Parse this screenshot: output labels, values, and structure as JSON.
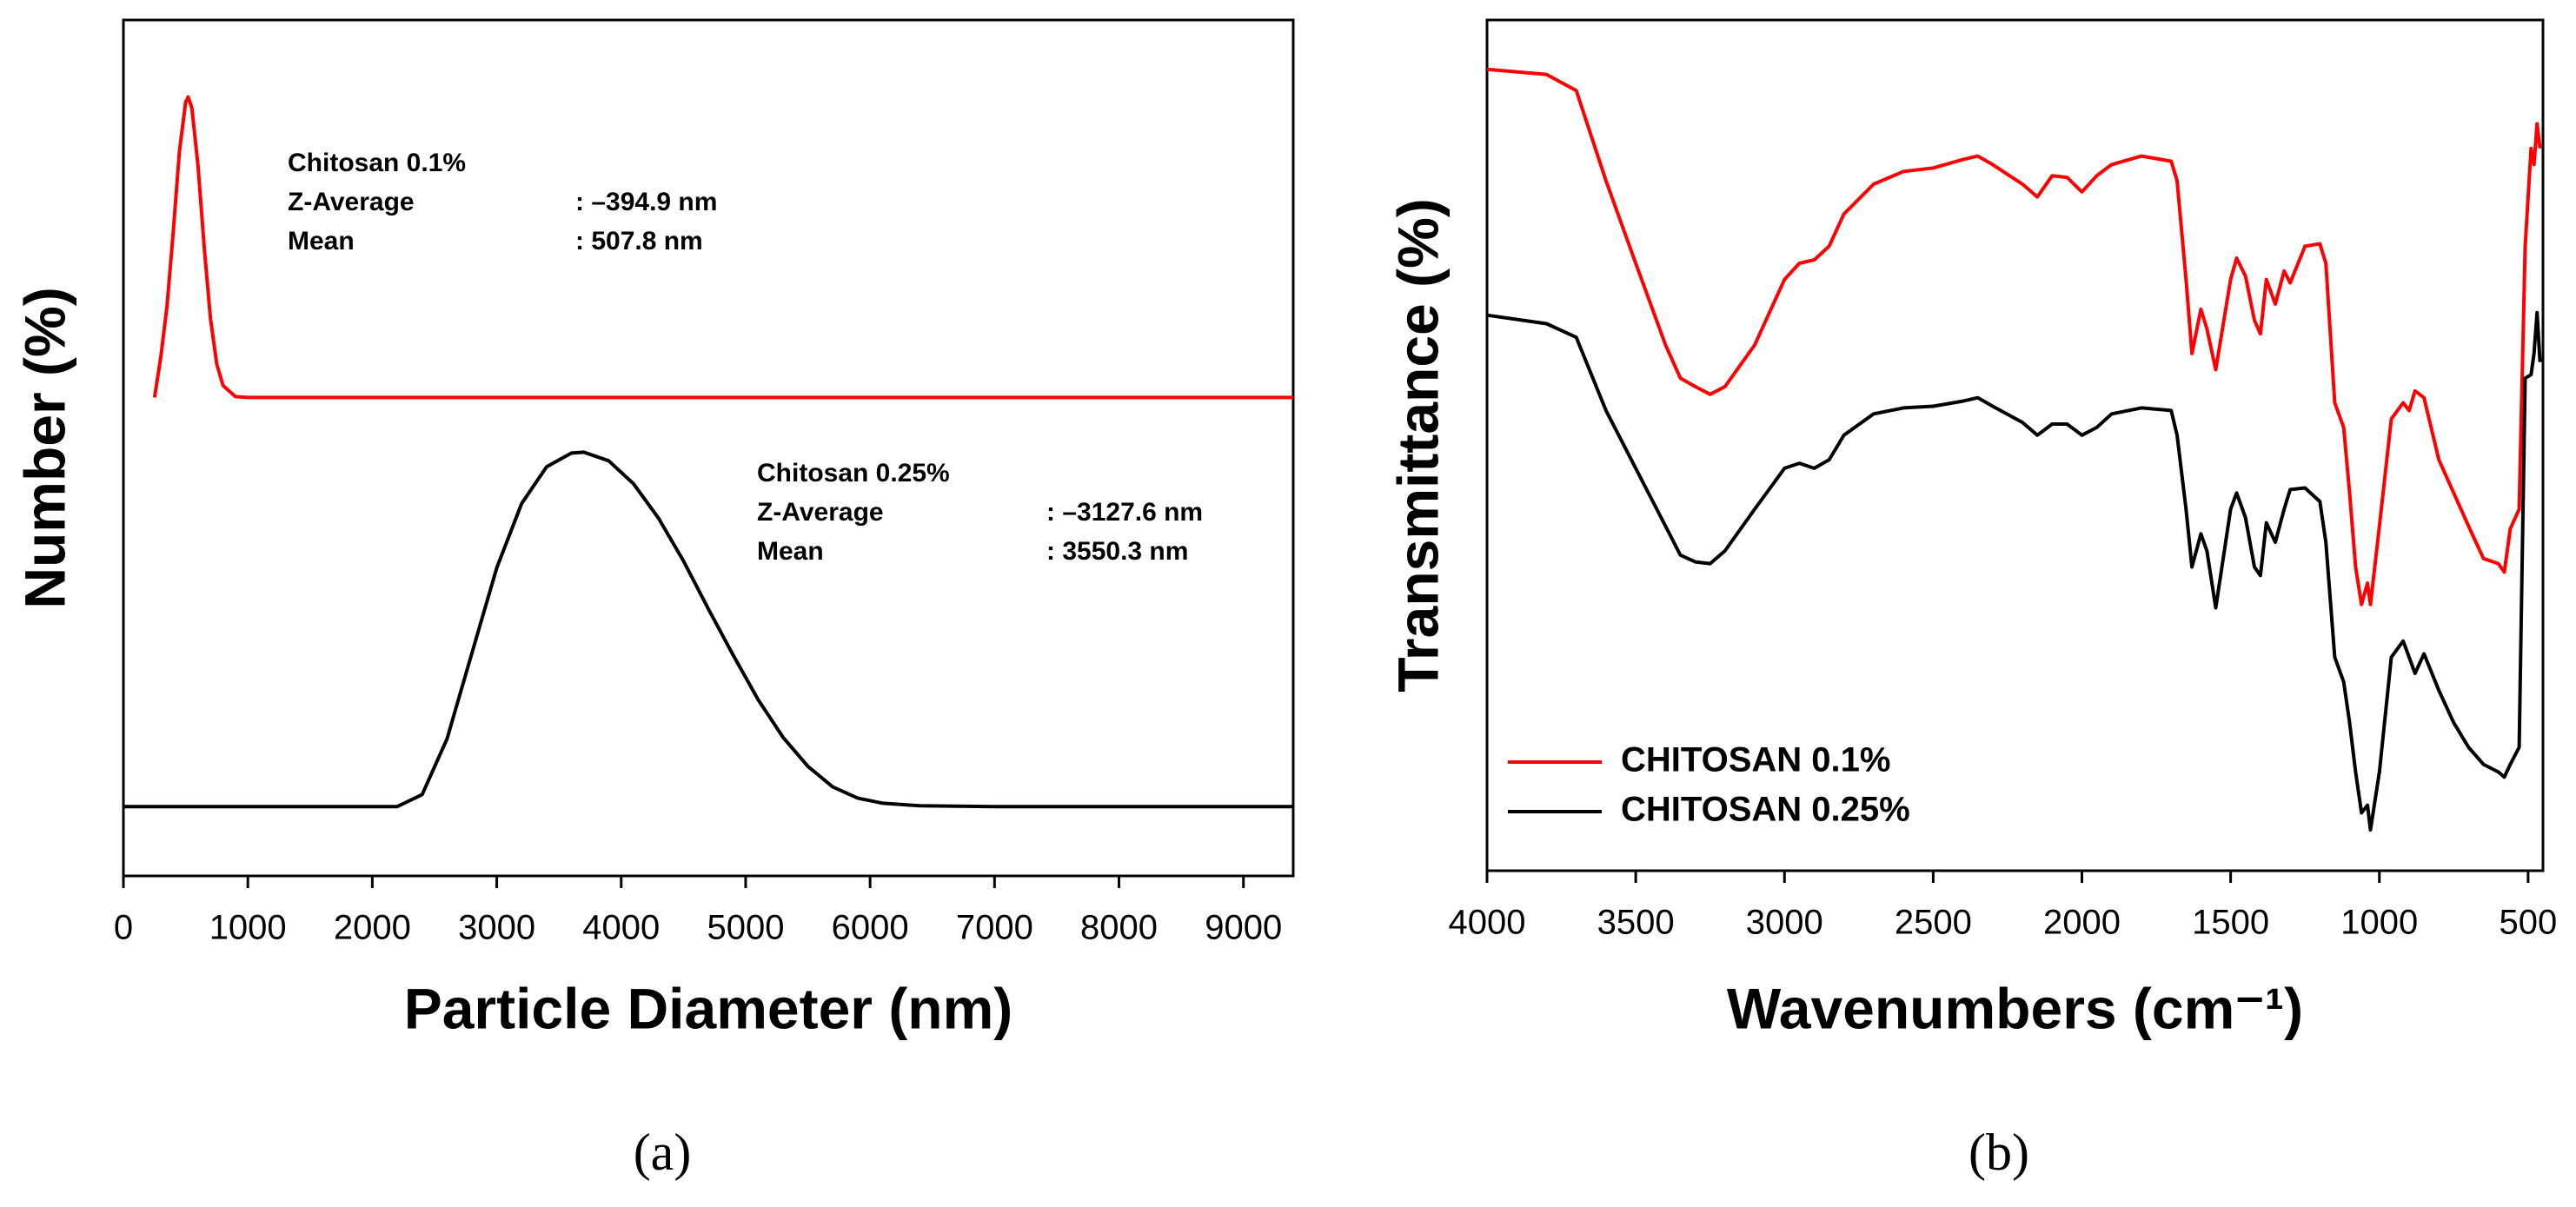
{
  "chart_data": [
    {
      "type": "line",
      "xlabel": "Particle Diameter (nm)",
      "ylabel": "Number (%)",
      "caption": "(a)",
      "xlim": [
        0,
        9400
      ],
      "xticks": [
        0,
        1000,
        2000,
        3000,
        4000,
        5000,
        6000,
        7000,
        8000,
        9000
      ],
      "ylim": [
        0,
        100
      ],
      "series": [
        {
          "name": "Chitosan 0.1%",
          "color": "#ff0000",
          "x": [
            250,
            300,
            350,
            400,
            450,
            500,
            520,
            550,
            600,
            650,
            700,
            750,
            800,
            900,
            1000,
            9400
          ],
          "values": [
            55.9,
            60.6,
            66.5,
            75.2,
            84.6,
            90.4,
            91.0,
            89.7,
            82.9,
            73.3,
            65.1,
            59.8,
            57.3,
            56.0,
            55.9,
            55.9
          ]
        },
        {
          "name": "Chitosan 0.25%",
          "color": "#000000",
          "x": [
            0,
            2200,
            2400,
            2600,
            2800,
            3000,
            3200,
            3400,
            3600,
            3700,
            3900,
            4100,
            4300,
            4500,
            4700,
            4900,
            5100,
            5300,
            5500,
            5700,
            5900,
            6100,
            6400,
            7000,
            9400
          ],
          "values": [
            8.1,
            8.1,
            9.5,
            16,
            26,
            36,
            43.5,
            47.8,
            49.4,
            49.5,
            48.5,
            45.8,
            41.8,
            36.8,
            31.2,
            25.8,
            20.6,
            16.2,
            12.8,
            10.4,
            9.1,
            8.5,
            8.2,
            8.1,
            8.1
          ]
        }
      ],
      "annotations": [
        {
          "lines": [
            [
              "Chitosan 0.1%"
            ],
            [
              "Z-Average",
              ": –394.9 nm"
            ],
            [
              "Mean",
              ": 507.8 nm"
            ]
          ]
        },
        {
          "lines": [
            [
              "Chitosan 0.25%"
            ],
            [
              "Z-Average",
              ": –3127.6 nm"
            ],
            [
              "Mean",
              ": 3550.3 nm"
            ]
          ]
        }
      ]
    },
    {
      "type": "line",
      "xlabel": "Wavenumbers (cm⁻¹)",
      "ylabel": "Transmittance (%)",
      "caption": "(b)",
      "xlim": [
        4000,
        450
      ],
      "xticks": [
        4000,
        3500,
        3000,
        2500,
        2000,
        1500,
        1000,
        500
      ],
      "ylim": [
        0,
        100
      ],
      "legend": "lower left",
      "x": [
        4000,
        3800,
        3700,
        3600,
        3500,
        3400,
        3350,
        3300,
        3250,
        3200,
        3100,
        3000,
        2950,
        2900,
        2850,
        2800,
        2700,
        2600,
        2500,
        2400,
        2350,
        2300,
        2200,
        2150,
        2100,
        2050,
        2000,
        1950,
        1900,
        1800,
        1700,
        1680,
        1650,
        1630,
        1600,
        1580,
        1550,
        1500,
        1480,
        1450,
        1420,
        1400,
        1380,
        1350,
        1320,
        1300,
        1250,
        1200,
        1180,
        1150,
        1120,
        1100,
        1080,
        1060,
        1040,
        1030,
        1000,
        960,
        920,
        900,
        880,
        850,
        800,
        750,
        700,
        650,
        600,
        580,
        560,
        530,
        510,
        490,
        480,
        470,
        460
      ],
      "series": [
        {
          "name": "CHITOSAN 0.1%",
          "color": "#ff0000",
          "values": [
            94.2,
            93.6,
            91.7,
            81.1,
            71.4,
            61.8,
            57.9,
            56.9,
            56.0,
            56.9,
            61.8,
            69.5,
            71.4,
            71.8,
            73.4,
            77.2,
            80.7,
            82.2,
            82.6,
            83.6,
            84.0,
            83.0,
            80.7,
            79.2,
            81.7,
            81.5,
            79.8,
            81.7,
            83.0,
            84.0,
            83.4,
            81.1,
            69.5,
            60.8,
            66.0,
            63.7,
            58.9,
            69.5,
            72.0,
            69.9,
            64.7,
            63.1,
            69.5,
            66.6,
            70.5,
            69.1,
            73.4,
            73.7,
            71.4,
            55.0,
            52.1,
            44.4,
            35.7,
            31.3,
            33.8,
            31.3,
            40.5,
            53.1,
            55.0,
            54.1,
            56.4,
            55.6,
            48.3,
            44.4,
            40.5,
            36.7,
            36.1,
            35.1,
            40.2,
            42.5,
            73.4,
            84.9,
            83.0,
            87.8,
            84.9
          ]
        },
        {
          "name": "CHITOSAN 0.25%",
          "color": "#000000",
          "values": [
            65.3,
            64.3,
            62.7,
            54.1,
            47.3,
            40.5,
            37.1,
            36.3,
            36.1,
            37.6,
            42.5,
            47.3,
            47.9,
            47.3,
            48.3,
            51.2,
            53.7,
            54.4,
            54.6,
            55.2,
            55.6,
            54.6,
            52.7,
            51.2,
            52.5,
            52.5,
            51.2,
            52.1,
            53.7,
            54.4,
            54.1,
            51.2,
            42.5,
            35.7,
            39.6,
            37.6,
            30.9,
            42.5,
            44.4,
            41.5,
            35.7,
            34.7,
            40.9,
            38.6,
            42.5,
            44.8,
            45.0,
            43.4,
            38.6,
            25.1,
            22.2,
            17.4,
            11.6,
            6.8,
            7.7,
            4.8,
            11.6,
            25.1,
            27.0,
            25.1,
            23.2,
            25.5,
            21.2,
            17.4,
            14.5,
            12.5,
            11.6,
            11.0,
            12.5,
            14.5,
            57.9,
            58.3,
            60.8,
            65.6,
            59.8
          ]
        }
      ]
    }
  ]
}
